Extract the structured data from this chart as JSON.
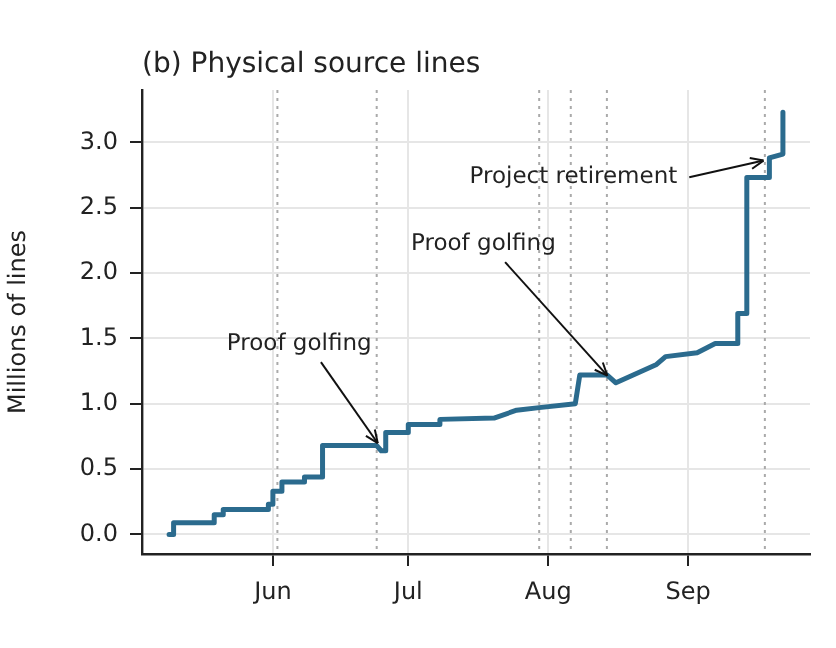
{
  "chart_data": {
    "type": "line",
    "title": "(b) Physical source lines",
    "ylabel": "Millions of lines",
    "xlim": [
      "--05-03",
      "--09-28"
    ],
    "ylim": [
      -0.15,
      3.4
    ],
    "xticks": [
      {
        "value": "--06-01",
        "label": "Jun"
      },
      {
        "value": "--07-01",
        "label": "Jul"
      },
      {
        "value": "--08-01",
        "label": "Aug"
      },
      {
        "value": "--09-01",
        "label": "Sep"
      }
    ],
    "yticks": [
      {
        "value": 0,
        "label": "0.0"
      },
      {
        "value": 0.5,
        "label": "0.5"
      },
      {
        "value": 1,
        "label": "1.0"
      },
      {
        "value": 1.5,
        "label": "1.5"
      },
      {
        "value": 2,
        "label": "2.0"
      },
      {
        "value": 2.5,
        "label": "2.5"
      },
      {
        "value": 3,
        "label": "3.0"
      }
    ],
    "grid": true,
    "legend": false,
    "marker": "none",
    "line_style": "solid",
    "series": [
      {
        "color": "#2b6b8e",
        "x": [
          "--05-09",
          "--05-10",
          "--05-10",
          "--05-19",
          "--05-19",
          "--05-21",
          "--05-21",
          "--05-31",
          "--05-31",
          "--06-01",
          "--06-01",
          "--06-03",
          "--06-03",
          "--06-08",
          "--06-08",
          "--06-12",
          "--06-12",
          "--06-24",
          "--06-25",
          "--06-26",
          "--06-26",
          "--07-01",
          "--07-01",
          "--07-08",
          "--07-08",
          "--07-20",
          "--07-25",
          "--07-30",
          "--08-07",
          "--08-08",
          "--08-14",
          "--08-16",
          "--08-25",
          "--08-27",
          "--09-03",
          "--09-07",
          "--09-12",
          "--09-12",
          "--09-13",
          "--09-13",
          "--09-14",
          "--09-14",
          "--09-19",
          "--09-19",
          "--09-22",
          "--09-22"
        ],
        "values": [
          0.0,
          0.0,
          0.09,
          0.09,
          0.15,
          0.15,
          0.19,
          0.19,
          0.23,
          0.23,
          0.33,
          0.33,
          0.4,
          0.4,
          0.44,
          0.44,
          0.68,
          0.68,
          0.64,
          0.64,
          0.78,
          0.78,
          0.84,
          0.84,
          0.88,
          0.89,
          0.95,
          0.97,
          1.0,
          1.22,
          1.22,
          1.16,
          1.3,
          1.36,
          1.39,
          1.46,
          1.46,
          1.69,
          1.69,
          1.69,
          1.69,
          2.73,
          2.73,
          2.88,
          2.91,
          3.23
        ]
      }
    ],
    "ref_lines": [
      {
        "axis": "x",
        "value": "--06-02",
        "color": "#aaaaaa",
        "line_style": "dotted"
      },
      {
        "axis": "x",
        "value": "--06-24",
        "color": "#aaaaaa",
        "line_style": "dotted"
      },
      {
        "axis": "x",
        "value": "--07-30",
        "color": "#aaaaaa",
        "line_style": "dotted"
      },
      {
        "axis": "x",
        "value": "--08-06",
        "color": "#aaaaaa",
        "line_style": "dotted"
      },
      {
        "axis": "x",
        "value": "--08-14",
        "color": "#aaaaaa",
        "line_style": "dotted"
      },
      {
        "axis": "x",
        "value": "--09-18",
        "color": "#aaaaaa",
        "line_style": "dotted"
      }
    ],
    "annotations": [
      {
        "text": "Proof golfing",
        "x": "--06-25",
        "y": 0.66
      },
      {
        "text": "Proof golfing",
        "x": "--08-15",
        "y": 1.18
      },
      {
        "text": "Project retirement",
        "x": "--09-19",
        "y": 2.87
      }
    ]
  }
}
